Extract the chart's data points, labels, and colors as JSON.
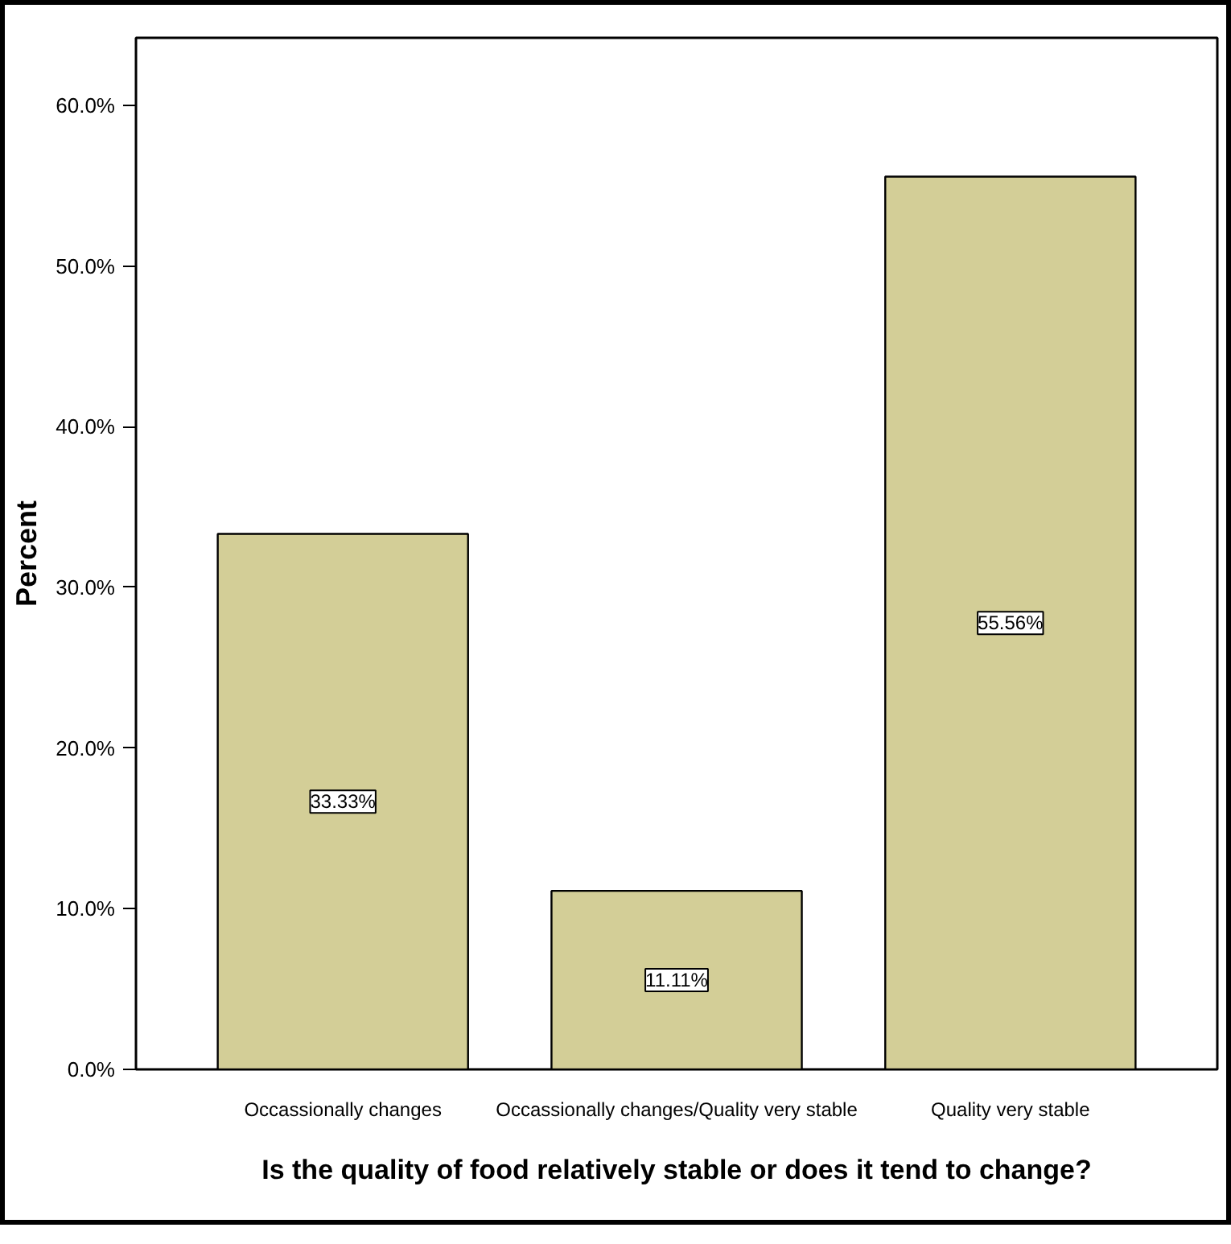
{
  "chart_data": {
    "type": "bar",
    "xlabel": "Is the quality of food relatively stable or does it tend to change?",
    "ylabel": "Percent",
    "categories": [
      "Occassionally changes",
      "Occassionally changes/Quality very stable",
      "Quality very stable"
    ],
    "values": [
      33.33,
      11.11,
      55.56
    ],
    "color": "#d3ce97",
    "value_labels": [
      "33.33%",
      "11.11%",
      "55.56%"
    ],
    "grid": false,
    "ylim": [
      0,
      64.2
    ],
    "yticks": [
      {
        "value": 0,
        "label": "0.0%"
      },
      {
        "value": 10,
        "label": "10.0%"
      },
      {
        "value": 20,
        "label": "20.0%"
      },
      {
        "value": 30,
        "label": "30.0%"
      },
      {
        "value": 40,
        "label": "40.0%"
      },
      {
        "value": 50,
        "label": "50.0%"
      },
      {
        "value": 60,
        "label": "60.0%"
      }
    ]
  }
}
